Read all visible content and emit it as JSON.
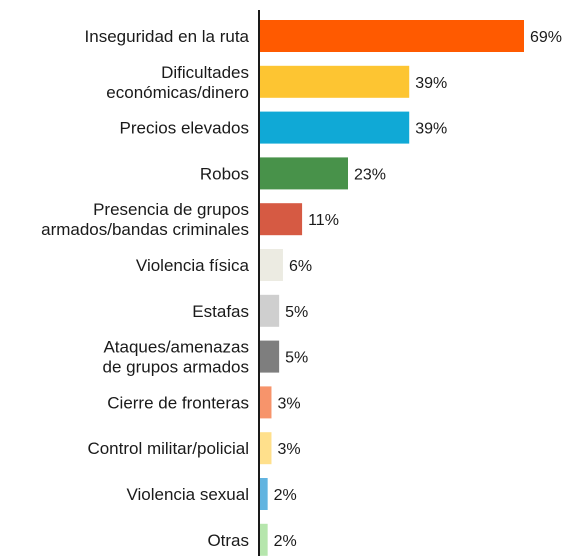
{
  "chart_data": {
    "type": "bar",
    "orientation": "horizontal",
    "title": "",
    "xlabel": "",
    "ylabel": "",
    "value_unit": "%",
    "xlim": [
      0,
      70
    ],
    "grid": false,
    "legend": "none",
    "categories": [
      [
        "Inseguridad en la ruta"
      ],
      [
        "Dificultades",
        "económicas/dinero"
      ],
      [
        "Precios elevados"
      ],
      [
        "Robos"
      ],
      [
        "Presencia de grupos",
        "armados/bandas criminales"
      ],
      [
        "Violencia física"
      ],
      [
        "Estafas"
      ],
      [
        "Ataques/amenazas",
        "de grupos armados"
      ],
      [
        "Cierre de fronteras"
      ],
      [
        "Control militar/policial"
      ],
      [
        "Violencia sexual"
      ],
      [
        "Otras"
      ]
    ],
    "values": [
      69,
      39,
      39,
      23,
      11,
      6,
      5,
      5,
      3,
      3,
      2,
      2
    ],
    "value_labels": [
      "69%",
      "39%",
      "39%",
      "23%",
      "11%",
      "6%",
      "5%",
      "5%",
      "3%",
      "3%",
      "2%",
      "2%"
    ],
    "colors": [
      "#ff5a00",
      "#fdc532",
      "#10a9d6",
      "#48924a",
      "#d65a43",
      "#ecebe2",
      "#cfcfcf",
      "#7e7e7e",
      "#f7946b",
      "#ffe08c",
      "#62b4e0",
      "#b6e6ad"
    ],
    "axis_color": "#1a1a1a"
  }
}
